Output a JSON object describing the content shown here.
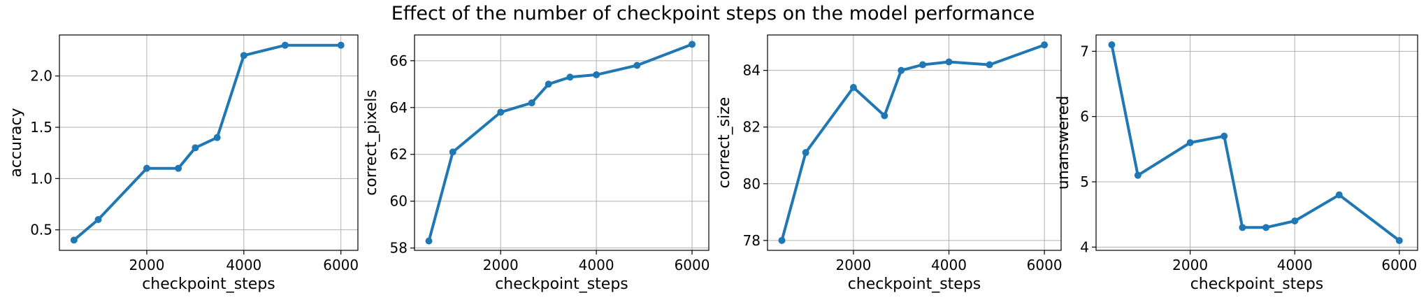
{
  "title": "Effect of the number of checkpoint steps on the model performance",
  "colors": {
    "series": "#1f77b4"
  },
  "chart_data": [
    {
      "type": "line",
      "xlabel": "checkpoint_steps",
      "ylabel": "accuracy",
      "x": [
        500,
        1000,
        2000,
        2650,
        3000,
        3450,
        4000,
        4850,
        6000
      ],
      "y": [
        0.4,
        0.6,
        1.1,
        1.1,
        1.3,
        1.4,
        2.2,
        2.3,
        2.3
      ],
      "xlim": [
        200,
        6350
      ],
      "ylim": [
        0.3,
        2.4
      ],
      "xticks": [
        2000,
        4000,
        6000
      ],
      "yticks": [
        0.5,
        1.0,
        1.5,
        2.0
      ],
      "xtick_labels": [
        "2000",
        "4000",
        "6000"
      ],
      "ytick_labels": [
        "0.5",
        "1.0",
        "1.5",
        "2.0"
      ],
      "grid": true
    },
    {
      "type": "line",
      "xlabel": "checkpoint_steps",
      "ylabel": "correct_pixels",
      "x": [
        500,
        1000,
        2000,
        2650,
        3000,
        3450,
        4000,
        4850,
        6000
      ],
      "y": [
        58.3,
        62.1,
        63.8,
        64.2,
        65.0,
        65.3,
        65.4,
        65.8,
        66.7
      ],
      "xlim": [
        200,
        6350
      ],
      "ylim": [
        57.9,
        67.1
      ],
      "xticks": [
        2000,
        4000,
        6000
      ],
      "yticks": [
        58,
        60,
        62,
        64,
        66
      ],
      "xtick_labels": [
        "2000",
        "4000",
        "6000"
      ],
      "ytick_labels": [
        "58",
        "60",
        "62",
        "64",
        "66"
      ],
      "grid": true
    },
    {
      "type": "line",
      "xlabel": "checkpoint_steps",
      "ylabel": "correct_size",
      "x": [
        500,
        1000,
        2000,
        2650,
        3000,
        3450,
        4000,
        4850,
        6000
      ],
      "y": [
        78.0,
        81.1,
        83.4,
        82.4,
        84.0,
        84.2,
        84.3,
        84.2,
        84.9
      ],
      "xlim": [
        200,
        6350
      ],
      "ylim": [
        77.65,
        85.25
      ],
      "xticks": [
        2000,
        4000,
        6000
      ],
      "yticks": [
        78,
        80,
        82,
        84
      ],
      "xtick_labels": [
        "2000",
        "4000",
        "6000"
      ],
      "ytick_labels": [
        "78",
        "80",
        "82",
        "84"
      ],
      "grid": true
    },
    {
      "type": "line",
      "xlabel": "checkpoint_steps",
      "ylabel": "unanswered",
      "x": [
        500,
        1000,
        2000,
        2650,
        3000,
        3450,
        4000,
        4850,
        6000
      ],
      "y": [
        7.1,
        5.1,
        5.6,
        5.7,
        4.3,
        4.3,
        4.4,
        4.8,
        4.1
      ],
      "xlim": [
        200,
        6350
      ],
      "ylim": [
        3.95,
        7.25
      ],
      "xticks": [
        2000,
        4000,
        6000
      ],
      "yticks": [
        4,
        5,
        6,
        7
      ],
      "xtick_labels": [
        "2000",
        "4000",
        "6000"
      ],
      "ytick_labels": [
        "4",
        "5",
        "6",
        "7"
      ],
      "grid": true
    }
  ]
}
